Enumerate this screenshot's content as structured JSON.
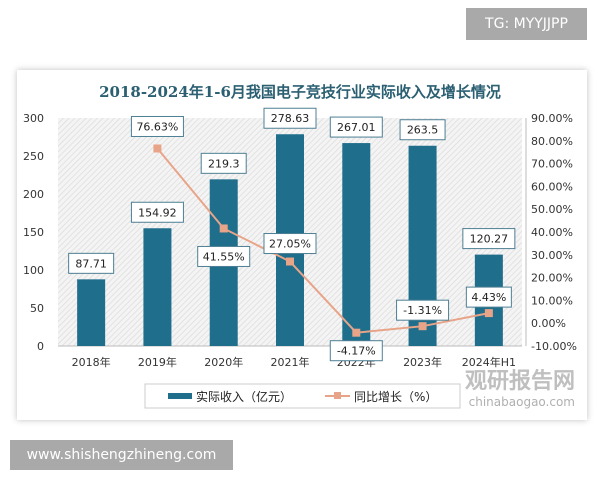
{
  "watermarks": {
    "top": "TG: MYYJJPP",
    "bottom": "www.shishengzhineng.com",
    "logo": "观研报告网",
    "logo_sub": "chinabaogao.com"
  },
  "chart_data": {
    "type": "bar+line",
    "title": "2018-2024年1-6月我国电子竞技行业实际收入及增长情况",
    "categories": [
      "2018年",
      "2019年",
      "2020年",
      "2021年",
      "2022年",
      "2023年",
      "2024年H1"
    ],
    "series": [
      {
        "name": "实际收入（亿元）",
        "type": "bar",
        "axis": "left",
        "color": "#1f6e8c",
        "values": [
          87.71,
          154.92,
          219.3,
          278.63,
          267.01,
          263.5,
          120.27
        ],
        "labels": [
          "87.71",
          "154.92",
          "219.3",
          "278.63",
          "267.01",
          "263.5",
          "120.27"
        ]
      },
      {
        "name": "同比增长（%）",
        "type": "line",
        "axis": "right",
        "color": "#e8a488",
        "values": [
          null,
          76.63,
          41.55,
          27.05,
          -4.17,
          -1.31,
          4.43
        ],
        "labels": [
          "",
          "76.63%",
          "41.55%",
          "27.05%",
          "-4.17%",
          "-1.31%",
          "4.43%"
        ]
      }
    ],
    "y_left": {
      "range": [
        0,
        300
      ],
      "ticks": [
        "0",
        "50",
        "100",
        "150",
        "200",
        "250",
        "300"
      ]
    },
    "y_right": {
      "range": [
        -10,
        90
      ],
      "ticks": [
        "-10.00%",
        "0.00%",
        "10.00%",
        "20.00%",
        "30.00%",
        "40.00%",
        "50.00%",
        "60.00%",
        "70.00%",
        "80.00%",
        "90.00%"
      ]
    },
    "legend": "bottom",
    "grid": false
  }
}
